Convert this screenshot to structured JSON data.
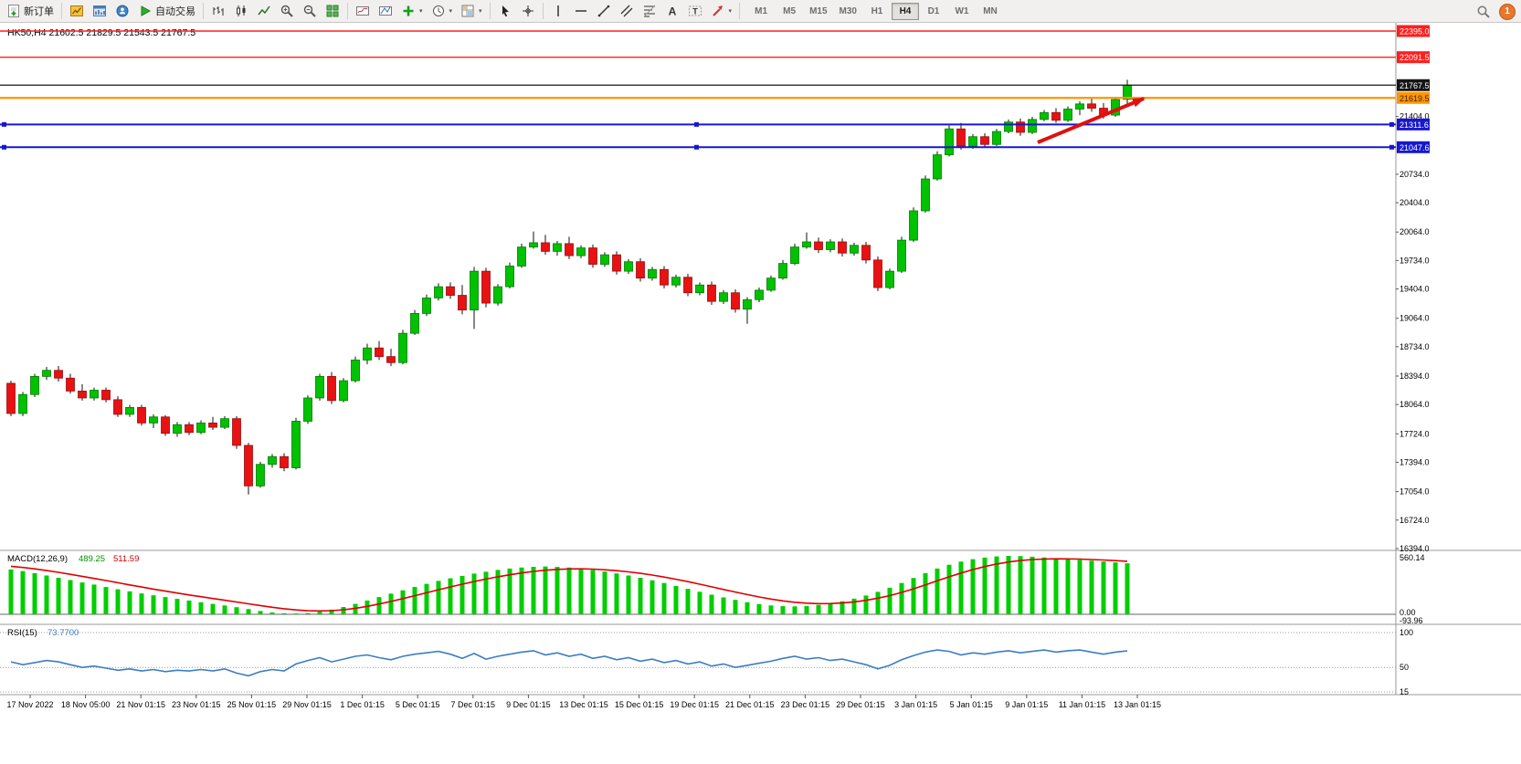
{
  "toolbar": {
    "new_order_label": "新订单",
    "autotrading_label": "自动交易",
    "timeframes": [
      "M1",
      "M5",
      "M15",
      "M30",
      "H1",
      "H4",
      "D1",
      "W1",
      "MN"
    ],
    "active_timeframe": "H4",
    "notification_count": "1"
  },
  "chart": {
    "symbol_header": "HK50,H4 21602.5 21829.5 21543.5 21767.5",
    "levels": [
      {
        "label": "22395.0",
        "value": 22395.0,
        "color": "#ff1f1f",
        "width": 1.4,
        "badge": "#ff1f1f",
        "text_color": "#ffffff",
        "handles": false
      },
      {
        "label": "22091.5",
        "value": 22091.5,
        "color": "#ff1f1f",
        "width": 1.4,
        "badge": "#ff1f1f",
        "text_color": "#ffffff",
        "handles": false
      },
      {
        "label": "21767.5",
        "value": 21767.5,
        "color": "#151515",
        "width": 1.2,
        "badge": "#151515",
        "text_color": "#ffffff",
        "handles": false
      },
      {
        "label": "21619.5",
        "value": 21619.5,
        "color": "#ff9500",
        "width": 2.2,
        "badge": "#ff9500",
        "text_color": "#3a2400",
        "handles": false
      },
      {
        "label": "21311.6",
        "value": 21311.6,
        "color": "#1717cf",
        "width": 2,
        "badge": "#1717cf",
        "text_color": "#ffffff",
        "handles": true
      },
      {
        "label": "21047.6",
        "value": 21047.6,
        "color": "#1717cf",
        "width": 2,
        "badge": "#1717cf",
        "text_color": "#ffffff",
        "handles": true
      }
    ],
    "price_axis": [
      21404.0,
      20734.0,
      20404.0,
      20064.0,
      19734.0,
      19404.0,
      19064.0,
      18734.0,
      18394.0,
      18064.0,
      17724.0,
      17394.0,
      17054.0,
      16724.0,
      16394.0
    ],
    "time_axis": [
      "17 Nov 2022",
      "18 Nov 05:00",
      "21 Nov 01:15",
      "23 Nov 01:15",
      "25 Nov 01:15",
      "29 Nov 01:15",
      "1 Dec 01:15",
      "5 Dec 01:15",
      "7 Dec 01:15",
      "9 Dec 01:15",
      "13 Dec 01:15",
      "15 Dec 01:15",
      "19 Dec 01:15",
      "21 Dec 01:15",
      "23 Dec 01:15",
      "29 Dec 01:15",
      "3 Jan 01:15",
      "5 Jan 01:15",
      "9 Jan 01:15",
      "11 Jan 01:15",
      "13 Jan 01:15"
    ]
  },
  "panels": {
    "macd": {
      "name": "MACD(12,26,9)",
      "main": "489.25",
      "signal": "511.59",
      "axis_max": "560.14",
      "axis_zero": "0.00",
      "axis_min": "-93.96"
    },
    "rsi": {
      "name": "RSI(15)",
      "value": "73.7700",
      "levels": [
        100,
        50,
        15
      ]
    }
  },
  "chart_data": {
    "type": "candlestick",
    "title": "HK50,H4",
    "symbol": "HK50",
    "timeframe": "H4",
    "ylim": [
      16394,
      22450
    ],
    "current_ohlc": {
      "open": 21602.5,
      "high": 21829.5,
      "low": 21543.5,
      "close": 21767.5
    },
    "candles": [
      [
        18310,
        18340,
        17930,
        17960
      ],
      [
        17960,
        18210,
        17930,
        18180
      ],
      [
        18180,
        18420,
        18150,
        18390
      ],
      [
        18390,
        18500,
        18350,
        18460
      ],
      [
        18460,
        18510,
        18330,
        18370
      ],
      [
        18370,
        18420,
        18190,
        18220
      ],
      [
        18220,
        18300,
        18110,
        18140
      ],
      [
        18140,
        18260,
        18110,
        18230
      ],
      [
        18230,
        18260,
        18090,
        18120
      ],
      [
        18120,
        18160,
        17920,
        17950
      ],
      [
        17950,
        18060,
        17920,
        18030
      ],
      [
        18030,
        18060,
        17820,
        17850
      ],
      [
        17850,
        17950,
        17790,
        17920
      ],
      [
        17920,
        17940,
        17700,
        17730
      ],
      [
        17730,
        17860,
        17690,
        17830
      ],
      [
        17830,
        17860,
        17710,
        17740
      ],
      [
        17740,
        17880,
        17720,
        17850
      ],
      [
        17850,
        17920,
        17770,
        17800
      ],
      [
        17800,
        17930,
        17780,
        17900
      ],
      [
        17900,
        17930,
        17550,
        17590
      ],
      [
        17590,
        17620,
        17020,
        17120
      ],
      [
        17120,
        17400,
        17100,
        17370
      ],
      [
        17370,
        17490,
        17330,
        17460
      ],
      [
        17460,
        17500,
        17290,
        17330
      ],
      [
        17330,
        17910,
        17310,
        17870
      ],
      [
        17870,
        18170,
        17840,
        18140
      ],
      [
        18140,
        18420,
        18110,
        18390
      ],
      [
        18390,
        18440,
        18070,
        18110
      ],
      [
        18110,
        18370,
        18090,
        18340
      ],
      [
        18340,
        18620,
        18320,
        18580
      ],
      [
        18580,
        18770,
        18530,
        18720
      ],
      [
        18720,
        18800,
        18580,
        18620
      ],
      [
        18620,
        18710,
        18510,
        18550
      ],
      [
        18550,
        18930,
        18530,
        18890
      ],
      [
        18890,
        19160,
        18870,
        19120
      ],
      [
        19120,
        19340,
        19090,
        19300
      ],
      [
        19300,
        19470,
        19270,
        19430
      ],
      [
        19430,
        19480,
        19290,
        19330
      ],
      [
        19330,
        19450,
        19110,
        19160
      ],
      [
        19160,
        19660,
        18940,
        19610
      ],
      [
        19610,
        19650,
        19190,
        19240
      ],
      [
        19240,
        19460,
        19210,
        19430
      ],
      [
        19430,
        19710,
        19410,
        19670
      ],
      [
        19670,
        19930,
        19650,
        19890
      ],
      [
        19890,
        20070,
        19870,
        19940
      ],
      [
        19940,
        20030,
        19800,
        19840
      ],
      [
        19840,
        19960,
        19790,
        19930
      ],
      [
        19930,
        20010,
        19750,
        19790
      ],
      [
        19790,
        19910,
        19760,
        19880
      ],
      [
        19880,
        19920,
        19650,
        19690
      ],
      [
        19690,
        19830,
        19660,
        19800
      ],
      [
        19800,
        19840,
        19570,
        19610
      ],
      [
        19610,
        19750,
        19580,
        19720
      ],
      [
        19720,
        19760,
        19490,
        19530
      ],
      [
        19530,
        19660,
        19500,
        19630
      ],
      [
        19630,
        19670,
        19410,
        19450
      ],
      [
        19450,
        19570,
        19420,
        19540
      ],
      [
        19540,
        19580,
        19320,
        19360
      ],
      [
        19360,
        19480,
        19330,
        19450
      ],
      [
        19450,
        19490,
        19220,
        19260
      ],
      [
        19260,
        19390,
        19230,
        19360
      ],
      [
        19360,
        19400,
        19130,
        19170
      ],
      [
        19170,
        19310,
        19000,
        19280
      ],
      [
        19280,
        19420,
        19250,
        19390
      ],
      [
        19390,
        19560,
        19370,
        19530
      ],
      [
        19530,
        19740,
        19510,
        19700
      ],
      [
        19700,
        19930,
        19680,
        19890
      ],
      [
        19890,
        20060,
        19870,
        19950
      ],
      [
        19950,
        20000,
        19820,
        19860
      ],
      [
        19860,
        19980,
        19830,
        19950
      ],
      [
        19950,
        19990,
        19780,
        19820
      ],
      [
        19820,
        19940,
        19790,
        19910
      ],
      [
        19910,
        19950,
        19700,
        19740
      ],
      [
        19740,
        19780,
        19380,
        19420
      ],
      [
        19420,
        19640,
        19400,
        19610
      ],
      [
        19610,
        20010,
        19590,
        19970
      ],
      [
        19970,
        20350,
        19950,
        20310
      ],
      [
        20310,
        20720,
        20290,
        20680
      ],
      [
        20680,
        21000,
        20660,
        20960
      ],
      [
        20960,
        21300,
        20940,
        21260
      ],
      [
        21260,
        21330,
        21020,
        21060
      ],
      [
        21060,
        21200,
        21030,
        21170
      ],
      [
        21170,
        21210,
        21040,
        21080
      ],
      [
        21080,
        21260,
        21060,
        21230
      ],
      [
        21230,
        21370,
        21210,
        21340
      ],
      [
        21340,
        21380,
        21180,
        21220
      ],
      [
        21220,
        21400,
        21200,
        21370
      ],
      [
        21370,
        21480,
        21350,
        21450
      ],
      [
        21450,
        21500,
        21330,
        21360
      ],
      [
        21360,
        21520,
        21340,
        21490
      ],
      [
        21490,
        21580,
        21420,
        21550
      ],
      [
        21550,
        21620,
        21460,
        21500
      ],
      [
        21500,
        21560,
        21380,
        21420
      ],
      [
        21420,
        21630,
        21400,
        21600
      ],
      [
        21602.5,
        21829.5,
        21543.5,
        21767.5
      ]
    ],
    "macd_histogram": [
      430,
      415,
      395,
      372,
      350,
      328,
      305,
      285,
      262,
      240,
      220,
      200,
      182,
      165,
      148,
      132,
      116,
      100,
      85,
      68,
      50,
      32,
      18,
      10,
      8,
      12,
      25,
      45,
      70,
      100,
      132,
      165,
      198,
      230,
      262,
      292,
      320,
      345,
      368,
      390,
      408,
      425,
      438,
      448,
      455,
      458,
      455,
      448,
      438,
      425,
      410,
      392,
      372,
      350,
      326,
      300,
      272,
      244,
      216,
      188,
      162,
      138,
      116,
      98,
      85,
      78,
      76,
      80,
      90,
      105,
      125,
      150,
      180,
      215,
      255,
      300,
      348,
      395,
      438,
      475,
      505,
      528,
      544,
      554,
      560,
      558,
      552,
      545,
      538,
      530,
      522,
      514,
      506,
      498,
      489
    ],
    "rsi": [
      58,
      54,
      57,
      60,
      58,
      54,
      50,
      52,
      49,
      46,
      48,
      45,
      47,
      44,
      46,
      45,
      47,
      45,
      48,
      42,
      38,
      44,
      47,
      45,
      55,
      60,
      64,
      58,
      62,
      66,
      68,
      64,
      61,
      66,
      69,
      71,
      73,
      69,
      63,
      70,
      62,
      66,
      69,
      72,
      74,
      68,
      71,
      66,
      69,
      63,
      66,
      61,
      64,
      59,
      62,
      57,
      60,
      55,
      58,
      52,
      55,
      50,
      53,
      56,
      59,
      63,
      66,
      62,
      64,
      60,
      62,
      58,
      54,
      48,
      53,
      61,
      67,
      72,
      75,
      73,
      68,
      71,
      69,
      72,
      74,
      71,
      73,
      75,
      72,
      74,
      75,
      72,
      69,
      72,
      73.77
    ]
  }
}
